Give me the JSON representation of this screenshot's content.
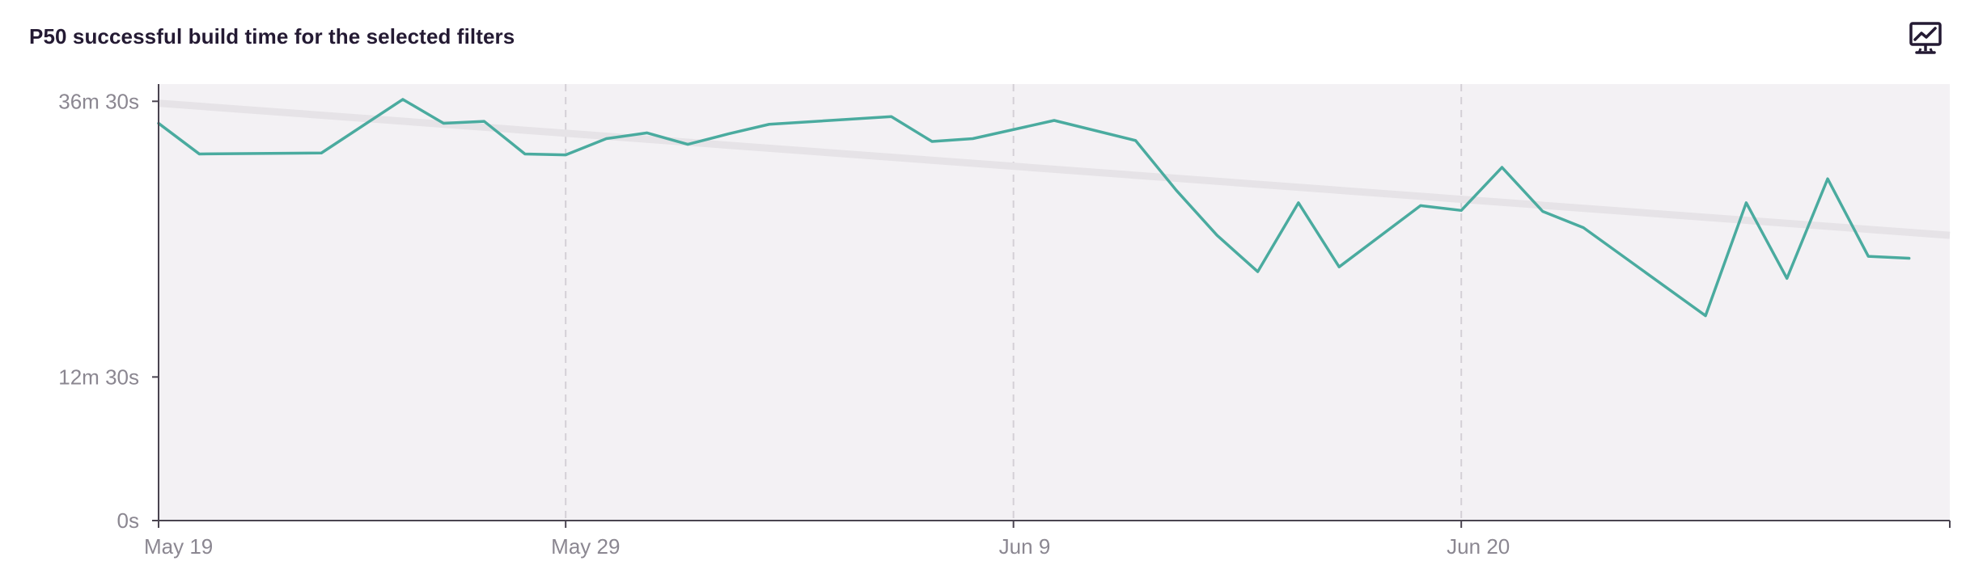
{
  "header": {
    "title": "P50 successful build time for the selected filters",
    "toggle_icon": "line-chart-monitor-icon"
  },
  "colors": {
    "series": "#4aab9f",
    "trend": "#e6e3e7",
    "plot_background": "#f3f1f4",
    "axis": "#4a4450",
    "tick_text": "#8b8791",
    "title_text": "#241a33"
  },
  "chart_data": {
    "type": "line",
    "title": "P50 successful build time for the selected filters",
    "xlabel": "",
    "ylabel": "",
    "x_ticks": [
      {
        "date": "2023-05-19",
        "label": "May 19"
      },
      {
        "date": "2023-05-29",
        "label": "May 29"
      },
      {
        "date": "2023-06-09",
        "label": "Jun 9"
      },
      {
        "date": "2023-06-20",
        "label": "Jun 20"
      }
    ],
    "xlim": [
      "2023-05-19",
      "2023-07-02"
    ],
    "y_ticks": [
      {
        "value": 0,
        "label": "0s"
      },
      {
        "value": 750,
        "label": "12m 30s"
      },
      {
        "value": 2190,
        "label": "36m 30s"
      }
    ],
    "ylim": [
      0,
      2280
    ],
    "grid": "vertical dashed at x ticks",
    "series": [
      {
        "x": [
          "2023-05-19",
          "2023-05-20",
          "2023-05-23",
          "2023-05-25",
          "2023-05-26",
          "2023-05-27",
          "2023-05-28",
          "2023-05-29",
          "2023-05-30",
          "2023-05-31",
          "2023-06-01",
          "2023-06-02",
          "2023-06-03",
          "2023-06-06",
          "2023-06-07",
          "2023-06-08",
          "2023-06-10",
          "2023-06-12",
          "2023-06-13",
          "2023-06-14",
          "2023-06-15",
          "2023-06-16",
          "2023-06-17",
          "2023-06-19",
          "2023-06-20",
          "2023-06-21",
          "2023-06-22",
          "2023-06-23",
          "2023-06-26",
          "2023-06-27",
          "2023-06-28",
          "2023-06-29",
          "2023-06-30",
          "2023-07-01"
        ],
        "values": [
          2075,
          1915,
          1920,
          2200,
          2075,
          2085,
          1915,
          1910,
          1995,
          2025,
          1965,
          2020,
          2070,
          2110,
          1980,
          1995,
          2090,
          1985,
          1725,
          1490,
          1300,
          1660,
          1325,
          1645,
          1620,
          1845,
          1615,
          1530,
          1070,
          1660,
          1265,
          1785,
          1380,
          1370
        ]
      },
      {
        "name": "",
        "kind": "trend",
        "x": [
          "2023-05-19",
          "2023-07-02"
        ],
        "values": [
          2180,
          1490
        ]
      }
    ]
  }
}
